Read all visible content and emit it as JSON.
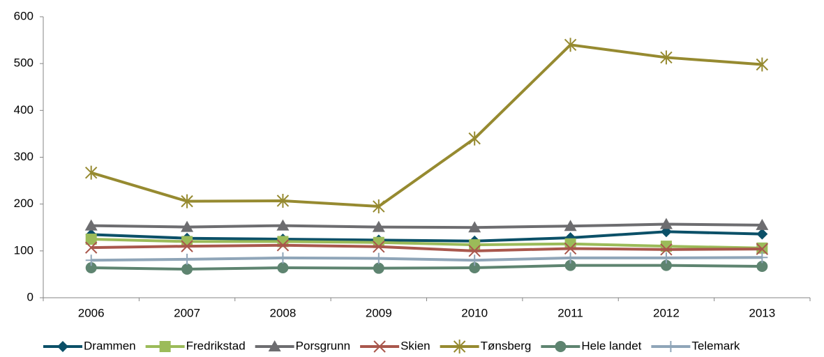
{
  "chart_data": {
    "type": "line",
    "categories": [
      "2006",
      "2007",
      "2008",
      "2009",
      "2010",
      "2011",
      "2012",
      "2013"
    ],
    "ylim": [
      0,
      600
    ],
    "yticks": [
      0,
      100,
      200,
      300,
      400,
      500,
      600
    ],
    "grid": false,
    "legend": "bottom",
    "series": [
      {
        "name": "Drammen",
        "color": "#0b5068",
        "marker": "diamond",
        "values": [
          135,
          127,
          125,
          123,
          121,
          128,
          141,
          136
        ]
      },
      {
        "name": "Fredrikstad",
        "color": "#9bbb59",
        "marker": "square",
        "values": [
          125,
          120,
          120,
          118,
          113,
          115,
          110,
          106
        ]
      },
      {
        "name": "Porsgrunn",
        "color": "#6d6d70",
        "marker": "triangle",
        "values": [
          154,
          151,
          154,
          151,
          150,
          153,
          157,
          155
        ]
      },
      {
        "name": "Skien",
        "color": "#a9574c",
        "marker": "x",
        "values": [
          107,
          110,
          112,
          109,
          100,
          105,
          103,
          104
        ]
      },
      {
        "name": "Tønsberg",
        "color": "#968a30",
        "marker": "star",
        "values": [
          267,
          206,
          207,
          195,
          340,
          540,
          513,
          498
        ]
      },
      {
        "name": "Hele landet",
        "color": "#5e8470",
        "marker": "circle",
        "values": [
          64,
          61,
          64,
          63,
          64,
          69,
          69,
          67
        ]
      },
      {
        "name": "Telemark",
        "color": "#8fa5b8",
        "marker": "plus",
        "values": [
          80,
          82,
          85,
          84,
          80,
          85,
          85,
          86
        ]
      }
    ]
  }
}
